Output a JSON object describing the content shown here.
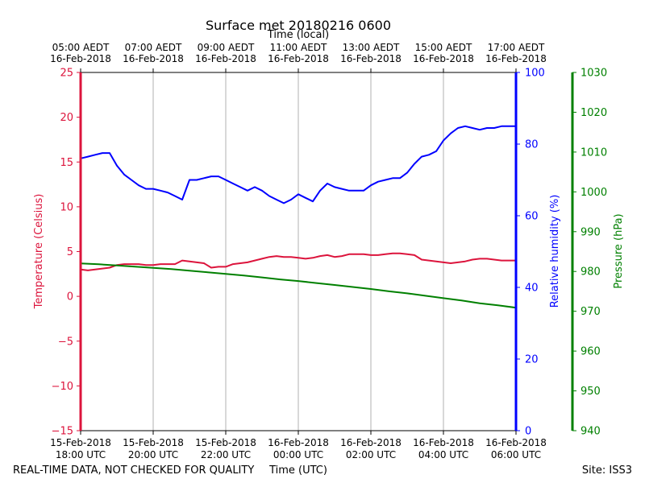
{
  "chart_data": {
    "type": "line",
    "title": "Surface met 20180216 0600",
    "top_axis_label": "Time (local)",
    "xlabel": "Time (UTC)",
    "footer_left": "REAL-TIME DATA, NOT CHECKED FOR QUALITY",
    "footer_right": "Site: ISS3",
    "x_range_hours": [
      0,
      12
    ],
    "bottom_ticks": [
      {
        "h": 0,
        "line1": "15-Feb-2018",
        "line2": "18:00 UTC"
      },
      {
        "h": 2,
        "line1": "15-Feb-2018",
        "line2": "20:00 UTC"
      },
      {
        "h": 4,
        "line1": "15-Feb-2018",
        "line2": "22:00 UTC"
      },
      {
        "h": 6,
        "line1": "16-Feb-2018",
        "line2": "00:00 UTC"
      },
      {
        "h": 8,
        "line1": "16-Feb-2018",
        "line2": "02:00 UTC"
      },
      {
        "h": 10,
        "line1": "16-Feb-2018",
        "line2": "04:00 UTC"
      },
      {
        "h": 12,
        "line1": "16-Feb-2018",
        "line2": "06:00 UTC"
      }
    ],
    "top_ticks": [
      {
        "h": 0,
        "line1": "05:00 AEDT",
        "line2": "16-Feb-2018"
      },
      {
        "h": 2,
        "line1": "07:00 AEDT",
        "line2": "16-Feb-2018"
      },
      {
        "h": 4,
        "line1": "09:00 AEDT",
        "line2": "16-Feb-2018"
      },
      {
        "h": 6,
        "line1": "11:00 AEDT",
        "line2": "16-Feb-2018"
      },
      {
        "h": 8,
        "line1": "13:00 AEDT",
        "line2": "16-Feb-2018"
      },
      {
        "h": 10,
        "line1": "15:00 AEDT",
        "line2": "16-Feb-2018"
      },
      {
        "h": 12,
        "line1": "17:00 AEDT",
        "line2": "16-Feb-2018"
      }
    ],
    "axes": {
      "temperature": {
        "label": "Temperature (Celsius)",
        "range": [
          -15,
          25
        ],
        "ticks": [
          -15,
          -10,
          -5,
          0,
          5,
          10,
          15,
          20,
          25
        ],
        "tick_labels": [
          "−15",
          "−10",
          "−5",
          "0",
          "5",
          "10",
          "15",
          "20",
          "25"
        ],
        "color": "#dc143c"
      },
      "humidity": {
        "label": "Relative humidity (%)",
        "range": [
          0,
          100
        ],
        "ticks": [
          0,
          20,
          40,
          60,
          80,
          100
        ],
        "tick_labels": [
          "0",
          "20",
          "40",
          "60",
          "80",
          "100"
        ],
        "color": "#0000ff"
      },
      "pressure": {
        "label": "Pressure (hPa)",
        "range": [
          940,
          1030
        ],
        "ticks": [
          940,
          950,
          960,
          970,
          980,
          990,
          1000,
          1010,
          1020,
          1030
        ],
        "tick_labels": [
          "940",
          "950",
          "960",
          "970",
          "980",
          "990",
          "1000",
          "1010",
          "1020",
          "1030"
        ],
        "color": "#008000"
      }
    },
    "series": [
      {
        "name": "Temperature",
        "axis": "temperature",
        "x": [
          0,
          0.2,
          0.4,
          0.6,
          0.8,
          1.0,
          1.2,
          1.4,
          1.6,
          1.8,
          2.0,
          2.2,
          2.4,
          2.6,
          2.8,
          3.0,
          3.2,
          3.4,
          3.6,
          3.8,
          4.0,
          4.2,
          4.4,
          4.6,
          4.8,
          5.0,
          5.2,
          5.4,
          5.6,
          5.8,
          6.0,
          6.2,
          6.4,
          6.6,
          6.8,
          7.0,
          7.2,
          7.4,
          7.6,
          7.8,
          8.0,
          8.2,
          8.4,
          8.6,
          8.8,
          9.0,
          9.2,
          9.4,
          9.6,
          9.8,
          10.0,
          10.2,
          10.4,
          10.6,
          10.8,
          11.0,
          11.2,
          11.4,
          11.6,
          11.8,
          12.0
        ],
        "values": [
          3.0,
          2.9,
          3.0,
          3.1,
          3.2,
          3.5,
          3.6,
          3.6,
          3.6,
          3.5,
          3.5,
          3.6,
          3.6,
          3.6,
          4.0,
          3.9,
          3.8,
          3.7,
          3.2,
          3.3,
          3.3,
          3.6,
          3.7,
          3.8,
          4.0,
          4.2,
          4.4,
          4.5,
          4.4,
          4.4,
          4.3,
          4.2,
          4.3,
          4.5,
          4.6,
          4.4,
          4.5,
          4.7,
          4.7,
          4.7,
          4.6,
          4.6,
          4.7,
          4.8,
          4.8,
          4.7,
          4.6,
          4.1,
          4.0,
          3.9,
          3.8,
          3.7,
          3.8,
          3.9,
          4.1,
          4.2,
          4.2,
          4.1,
          4.0,
          4.0,
          4.0
        ]
      },
      {
        "name": "Relative humidity",
        "axis": "humidity",
        "x": [
          0,
          0.2,
          0.4,
          0.6,
          0.8,
          1.0,
          1.2,
          1.4,
          1.6,
          1.8,
          2.0,
          2.2,
          2.4,
          2.6,
          2.8,
          3.0,
          3.2,
          3.4,
          3.6,
          3.8,
          4.0,
          4.2,
          4.4,
          4.6,
          4.8,
          5.0,
          5.2,
          5.4,
          5.6,
          5.8,
          6.0,
          6.2,
          6.4,
          6.6,
          6.8,
          7.0,
          7.2,
          7.4,
          7.6,
          7.8,
          8.0,
          8.2,
          8.4,
          8.6,
          8.8,
          9.0,
          9.2,
          9.4,
          9.6,
          9.8,
          10.0,
          10.2,
          10.4,
          10.6,
          10.8,
          11.0,
          11.2,
          11.4,
          11.6,
          11.8,
          12.0
        ],
        "values": [
          76,
          76.5,
          77,
          77.5,
          77.5,
          74,
          71.5,
          70,
          68.5,
          67.5,
          67.5,
          67,
          66.5,
          65.5,
          64.5,
          70,
          70,
          70.5,
          71,
          71,
          70,
          69,
          68,
          67,
          68,
          67,
          65.5,
          64.5,
          63.5,
          64.5,
          66,
          65,
          64,
          67,
          69,
          68,
          67.5,
          67,
          67,
          67,
          68.5,
          69.5,
          70,
          70.5,
          70.5,
          72,
          74.5,
          76.5,
          77,
          78,
          81,
          83,
          84.5,
          85,
          84.5,
          84,
          84.5,
          84.5,
          85,
          85,
          85
        ]
      },
      {
        "name": "Pressure",
        "axis": "pressure",
        "x": [
          0,
          0.5,
          1.0,
          1.5,
          2.0,
          2.5,
          3.0,
          3.5,
          4.0,
          4.5,
          5.0,
          5.5,
          6.0,
          6.5,
          7.0,
          7.5,
          8.0,
          8.5,
          9.0,
          9.5,
          10.0,
          10.5,
          11.0,
          11.5,
          12.0
        ],
        "values": [
          982.0,
          981.8,
          981.5,
          981.2,
          980.9,
          980.6,
          980.2,
          979.8,
          979.4,
          979.0,
          978.5,
          978.0,
          977.6,
          977.1,
          976.6,
          976.1,
          975.6,
          975.0,
          974.5,
          973.9,
          973.3,
          972.7,
          972.0,
          971.5,
          970.9
        ]
      }
    ]
  }
}
